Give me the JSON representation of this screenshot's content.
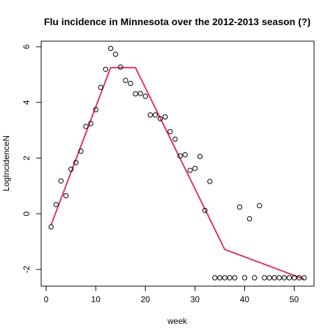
{
  "chart_data": {
    "type": "scatter",
    "title": "Flu incidence in Minnesota over the 2012-2013 season (?)",
    "xlabel": "week",
    "ylabel": "LogIncidenceN",
    "xlim": [
      -1,
      54
    ],
    "ylim": [
      -2.6,
      6.2
    ],
    "x_ticks": [
      0,
      10,
      20,
      30,
      40,
      50
    ],
    "y_ticks": [
      -2,
      0,
      2,
      4,
      6
    ],
    "grid": false,
    "legend": "none",
    "series": [
      {
        "type": "scatter",
        "marker": "open-circle",
        "color": "#000000",
        "points": [
          [
            1,
            -0.47
          ],
          [
            2,
            0.33
          ],
          [
            3,
            1.18
          ],
          [
            4,
            0.65
          ],
          [
            5,
            1.6
          ],
          [
            6,
            1.84
          ],
          [
            7,
            2.25
          ],
          [
            8,
            3.14
          ],
          [
            9,
            3.24
          ],
          [
            10,
            3.74
          ],
          [
            11,
            4.54
          ],
          [
            12,
            5.19
          ],
          [
            13,
            5.94
          ],
          [
            14,
            5.73
          ],
          [
            15,
            5.27
          ],
          [
            16,
            4.79
          ],
          [
            17,
            4.68
          ],
          [
            18,
            4.31
          ],
          [
            19,
            4.32
          ],
          [
            20,
            4.22
          ],
          [
            21,
            3.55
          ],
          [
            22,
            3.55
          ],
          [
            23,
            3.42
          ],
          [
            24,
            3.48
          ],
          [
            25,
            2.95
          ],
          [
            26,
            2.68
          ],
          [
            27,
            2.08
          ],
          [
            28,
            2.12
          ],
          [
            29,
            1.56
          ],
          [
            30,
            1.63
          ],
          [
            31,
            2.06
          ],
          [
            32,
            0.12
          ],
          [
            33,
            1.16
          ],
          [
            34,
            -2.3
          ],
          [
            35,
            -2.3
          ],
          [
            36,
            -2.3
          ],
          [
            37,
            -2.3
          ],
          [
            38,
            -2.3
          ],
          [
            39,
            0.24
          ],
          [
            40,
            -2.3
          ],
          [
            41,
            -0.18
          ],
          [
            42,
            -2.3
          ],
          [
            43,
            0.29
          ],
          [
            44,
            -2.3
          ],
          [
            45,
            -2.3
          ],
          [
            46,
            -2.3
          ],
          [
            47,
            -2.3
          ],
          [
            48,
            -2.3
          ],
          [
            49,
            -2.3
          ],
          [
            50,
            -2.3
          ],
          [
            51,
            -2.3
          ],
          [
            52,
            -2.3
          ]
        ]
      },
      {
        "type": "line",
        "color": "#e0325a",
        "points": [
          [
            1,
            -0.4
          ],
          [
            13,
            5.25
          ],
          [
            18,
            5.25
          ],
          [
            36,
            -1.28
          ],
          [
            52,
            -2.35
          ]
        ]
      }
    ]
  }
}
